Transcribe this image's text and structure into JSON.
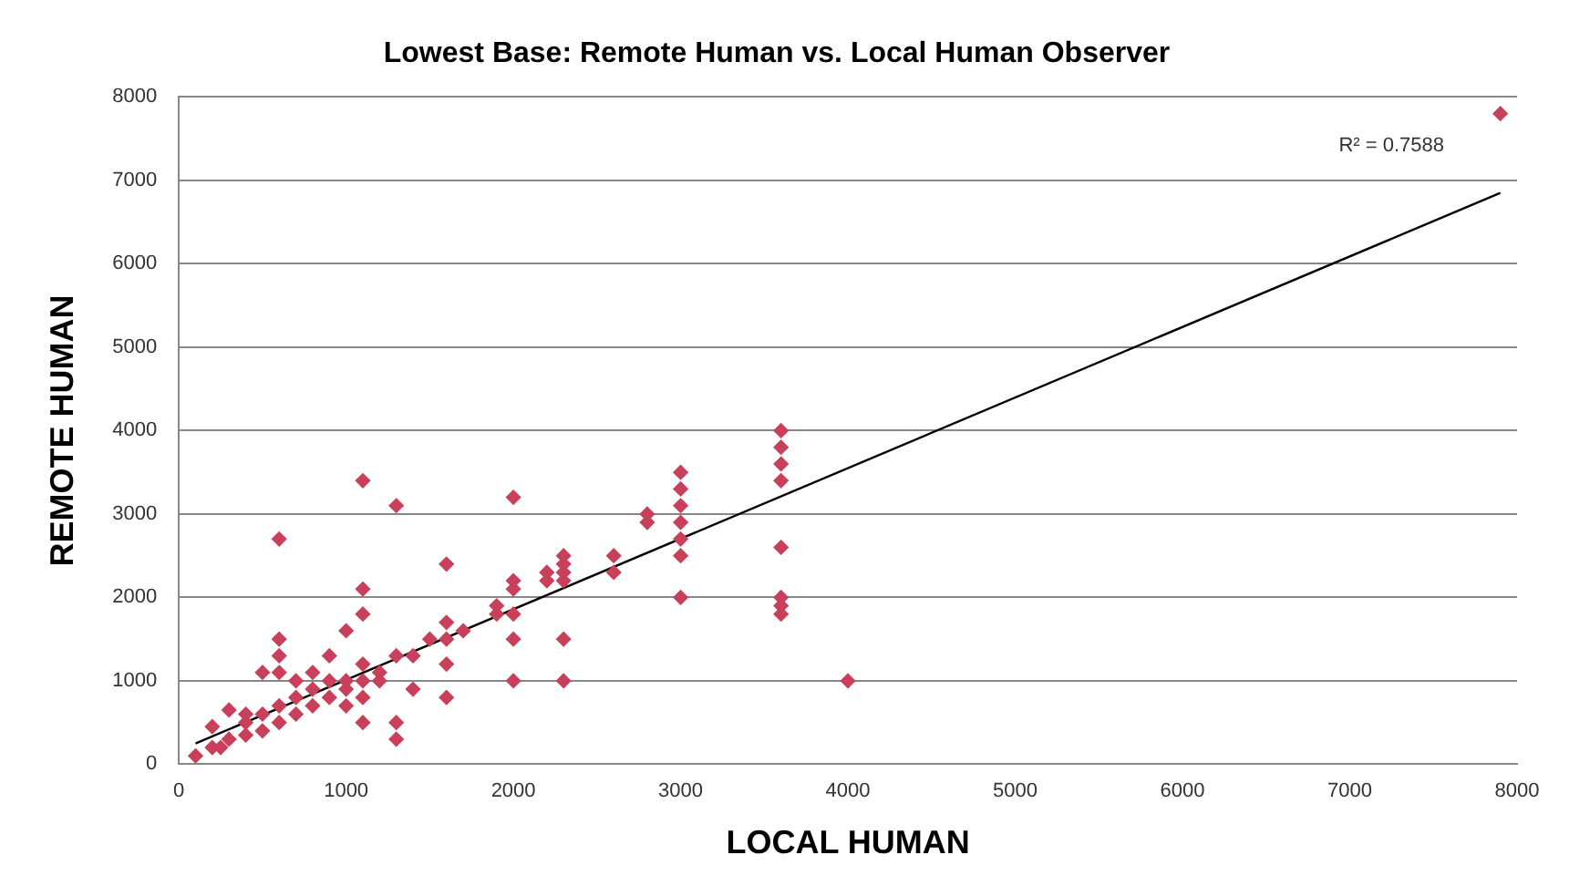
{
  "chart_data": {
    "type": "scatter",
    "title": "Lowest Base: Remote Human vs. Local Human Observer",
    "xlabel": "LOCAL HUMAN",
    "ylabel": "REMOTE HUMAN",
    "xlim": [
      0,
      8000
    ],
    "xticks": [
      0,
      1000,
      2000,
      3000,
      4000,
      5000,
      6000,
      7000,
      8000
    ],
    "ylim": [
      0,
      8000
    ],
    "yticks": [
      0,
      1000,
      2000,
      3000,
      4000,
      5000,
      6000,
      7000,
      8000
    ],
    "grid": "y",
    "legend": false,
    "marker": "diamond",
    "annotations": [
      "R² = 0.7588"
    ],
    "series": [
      {
        "color": "#c8405a",
        "x": [
          600,
          1100,
          1300,
          1600,
          2000,
          2000,
          2000,
          2000,
          2000,
          2000,
          2300,
          2300,
          2300,
          2300,
          2200,
          2200,
          2300,
          2300,
          2600,
          2600,
          2800,
          2800,
          3000,
          3000,
          3000,
          3000,
          3000,
          3000,
          3000,
          3600,
          3600,
          3600,
          3600,
          3600,
          3600,
          3600,
          3600,
          4000,
          7900,
          100,
          200,
          200,
          300,
          300,
          400,
          400,
          500,
          500,
          500,
          600,
          600,
          600,
          600,
          600,
          700,
          700,
          800,
          800,
          900,
          900,
          900,
          1000,
          1000,
          1000,
          1000,
          1100,
          1100,
          1100,
          1100,
          1100,
          1100,
          1200,
          1200,
          1300,
          1300,
          1300,
          1400,
          1400,
          1500,
          1600,
          1600,
          1600,
          1600,
          1700,
          1900,
          1900,
          700,
          800,
          400,
          250
        ],
        "values": [
          2700,
          3400,
          3100,
          2400,
          3200,
          2200,
          2100,
          1800,
          1500,
          1000,
          2500,
          2400,
          2300,
          2200,
          2300,
          2200,
          1500,
          1000,
          2500,
          2300,
          3000,
          2900,
          3500,
          3300,
          3100,
          2900,
          2700,
          2500,
          2000,
          4000,
          3800,
          3600,
          3400,
          2600,
          2000,
          1900,
          1800,
          1000,
          7800,
          100,
          200,
          450,
          300,
          650,
          500,
          350,
          600,
          400,
          1100,
          1500,
          1300,
          1100,
          700,
          500,
          600,
          800,
          900,
          700,
          1300,
          800,
          1000,
          1600,
          900,
          1000,
          700,
          2100,
          1800,
          1200,
          1000,
          800,
          500,
          1000,
          1100,
          1300,
          500,
          300,
          900,
          1300,
          1500,
          1700,
          1500,
          1200,
          800,
          1600,
          1900,
          1800,
          1000,
          1100,
          600,
          200
        ]
      },
      {
        "type": "line",
        "color": "#000000",
        "marker": "none",
        "x": [
          100,
          7900
        ],
        "values": [
          250,
          6850
        ]
      }
    ]
  }
}
